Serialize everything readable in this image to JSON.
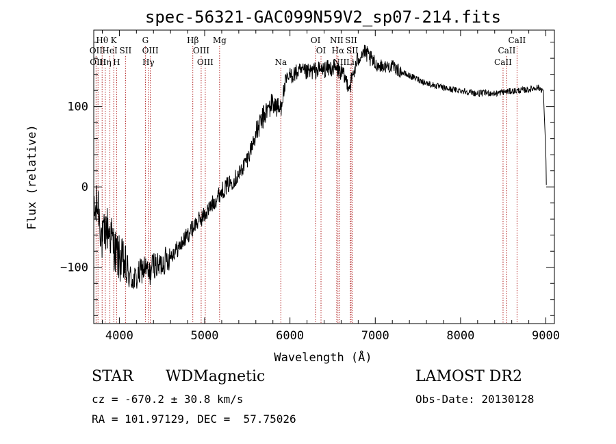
{
  "chart_data": {
    "type": "line",
    "title": "spec-56321-GAC099N59V2_sp07-214.fits",
    "xlabel": "Wavelength (Å)",
    "ylabel": "Flux (relative)",
    "xlim": [
      3700,
      9100
    ],
    "ylim": [
      -170,
      195
    ],
    "xticks": [
      4000,
      5000,
      6000,
      7000,
      8000,
      9000
    ],
    "yticks": [
      -100,
      0,
      100
    ],
    "grid": false,
    "line_color": "#000000",
    "marker_color": "#b22222",
    "anchors": [
      [
        3700,
        -40
      ],
      [
        3750,
        -20
      ],
      [
        3800,
        -70
      ],
      [
        3850,
        -50
      ],
      [
        3900,
        -60
      ],
      [
        3950,
        -80
      ],
      [
        4000,
        -90
      ],
      [
        4050,
        -95
      ],
      [
        4100,
        -110
      ],
      [
        4150,
        -115
      ],
      [
        4200,
        -115
      ],
      [
        4250,
        -105
      ],
      [
        4300,
        -100
      ],
      [
        4350,
        -110
      ],
      [
        4400,
        -95
      ],
      [
        4450,
        -100
      ],
      [
        4500,
        -95
      ],
      [
        4550,
        -90
      ],
      [
        4600,
        -85
      ],
      [
        4700,
        -75
      ],
      [
        4800,
        -60
      ],
      [
        4900,
        -45
      ],
      [
        5000,
        -35
      ],
      [
        5100,
        -20
      ],
      [
        5200,
        -5
      ],
      [
        5300,
        5
      ],
      [
        5400,
        15
      ],
      [
        5500,
        35
      ],
      [
        5600,
        65
      ],
      [
        5700,
        90
      ],
      [
        5800,
        105
      ],
      [
        5880,
        95
      ],
      [
        5950,
        130
      ],
      [
        6000,
        138
      ],
      [
        6100,
        143
      ],
      [
        6200,
        142
      ],
      [
        6300,
        145
      ],
      [
        6400,
        146
      ],
      [
        6500,
        148
      ],
      [
        6600,
        143
      ],
      [
        6700,
        125
      ],
      [
        6800,
        160
      ],
      [
        6850,
        168
      ],
      [
        6900,
        165
      ],
      [
        6950,
        158
      ],
      [
        7000,
        152
      ],
      [
        7100,
        150
      ],
      [
        7200,
        150
      ],
      [
        7300,
        143
      ],
      [
        7400,
        138
      ],
      [
        7500,
        134
      ],
      [
        7600,
        129
      ],
      [
        7700,
        126
      ],
      [
        7800,
        123
      ],
      [
        7900,
        121
      ],
      [
        8000,
        120
      ],
      [
        8100,
        118
      ],
      [
        8200,
        116
      ],
      [
        8300,
        117
      ],
      [
        8400,
        116
      ],
      [
        8500,
        118
      ],
      [
        8600,
        119
      ],
      [
        8700,
        120
      ],
      [
        8800,
        121
      ],
      [
        8900,
        124
      ],
      [
        8970,
        120
      ],
      [
        9000,
        40
      ],
      [
        9005,
        3
      ]
    ],
    "lines": [
      {
        "label": "Hθ",
        "wave": 3798,
        "row": 0
      },
      {
        "label": "K",
        "wave": 3934,
        "row": 0
      },
      {
        "label": "G",
        "wave": 4305,
        "row": 0
      },
      {
        "label": "Hβ",
        "wave": 4861,
        "row": 0
      },
      {
        "label": "Mg",
        "wave": 5175,
        "row": 0
      },
      {
        "label": "OI",
        "wave": 6300,
        "row": 0
      },
      {
        "label": "NII",
        "wave": 6548,
        "row": 0
      },
      {
        "label": "SII",
        "wave": 6717,
        "row": 0
      },
      {
        "label": "CaII",
        "wave": 8662,
        "row": 0
      },
      {
        "label": "OII",
        "wave": 3727,
        "row": 1
      },
      {
        "label": "HeI",
        "wave": 3889,
        "row": 1
      },
      {
        "label": "SII",
        "wave": 4072,
        "row": 1
      },
      {
        "label": "OIII",
        "wave": 4363,
        "row": 1
      },
      {
        "label": "OIII",
        "wave": 4959,
        "row": 1
      },
      {
        "label": "OI",
        "wave": 6364,
        "row": 1
      },
      {
        "label": "Hα",
        "wave": 6563,
        "row": 1
      },
      {
        "label": "SII",
        "wave": 6731,
        "row": 1
      },
      {
        "label": "CaII",
        "wave": 8542,
        "row": 1
      },
      {
        "label": "OIII",
        "wave": 3750,
        "row": 2
      },
      {
        "label": "Hη",
        "wave": 3835,
        "row": 2
      },
      {
        "label": "H",
        "wave": 3968,
        "row": 2
      },
      {
        "label": "Hγ",
        "wave": 4340,
        "row": 2
      },
      {
        "label": "OIII",
        "wave": 5007,
        "row": 2
      },
      {
        "label": "Na",
        "wave": 5893,
        "row": 2
      },
      {
        "label": "NII",
        "wave": 6583,
        "row": 2
      },
      {
        "label": "Li",
        "wave": 6708,
        "row": 2
      },
      {
        "label": "CaII",
        "wave": 8498,
        "row": 2
      }
    ]
  },
  "info": {
    "class": "STAR",
    "subclass": "WDMagnetic",
    "survey": "LAMOST DR2",
    "cz": "cz = -670.2 ± 30.8 km/s",
    "obsdate": "Obs-Date: 20130128",
    "radec": "RA = 101.97129, DEC =  57.75026"
  }
}
